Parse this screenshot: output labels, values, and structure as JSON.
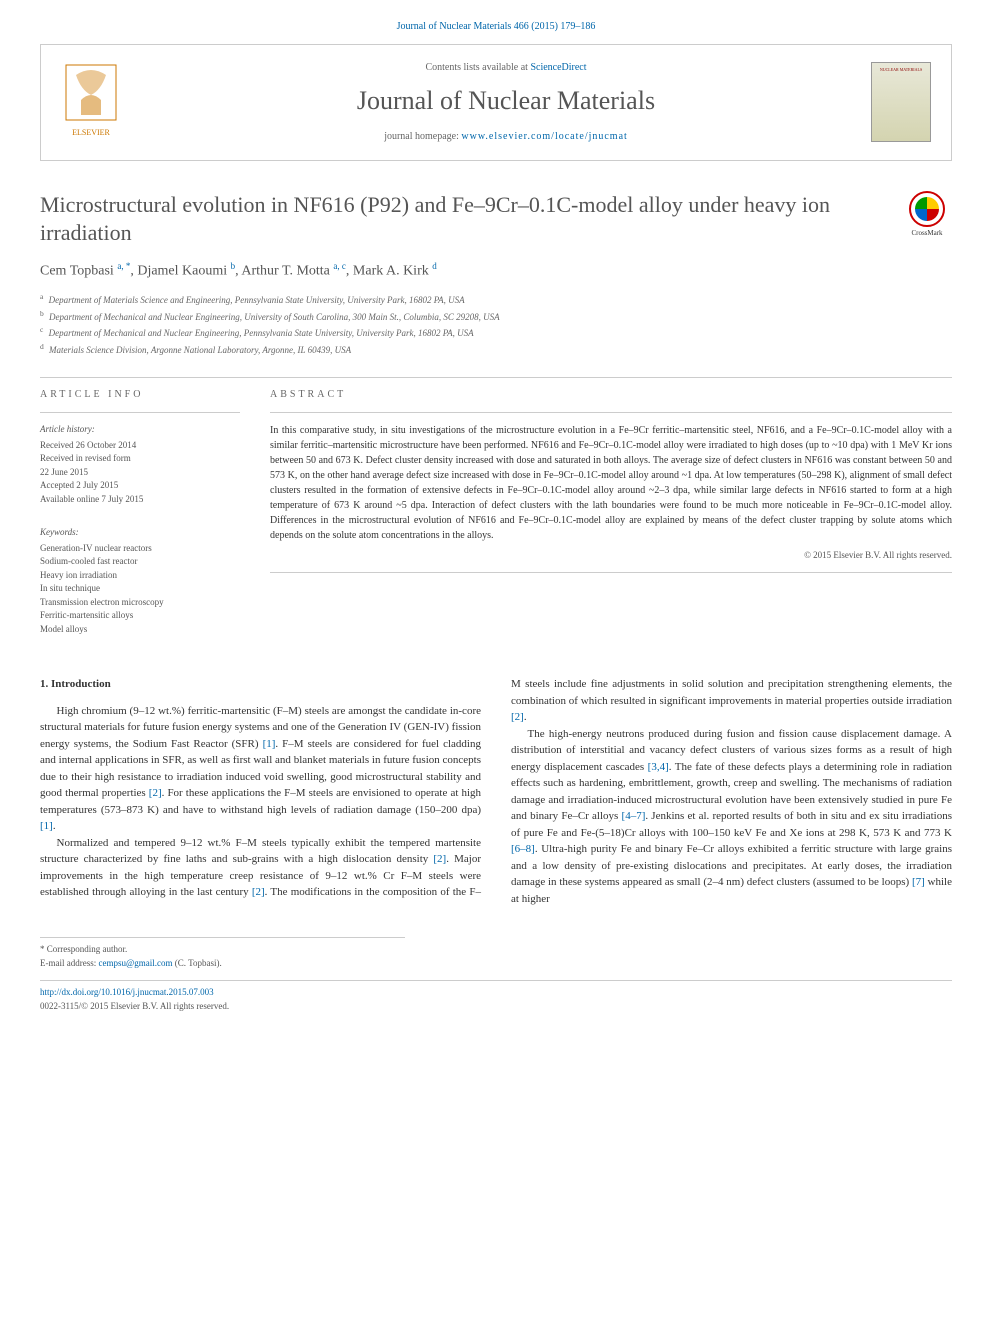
{
  "citation": "Journal of Nuclear Materials 466 (2015) 179–186",
  "banner": {
    "contents_prefix": "Contents lists available at ",
    "contents_link": "ScienceDirect",
    "journal_name": "Journal of Nuclear Materials",
    "homepage_prefix": "journal homepage: ",
    "homepage_url": "www.elsevier.com/locate/jnucmat",
    "cover_label": "NUCLEAR MATERIALS"
  },
  "title": "Microstructural evolution in NF616 (P92) and Fe–9Cr–0.1C-model alloy under heavy ion irradiation",
  "crossmark_label": "CrossMark",
  "authors_html": "Cem Topbasi <sup>a, *</sup>, Djamel Kaoumi <sup>b</sup>, Arthur T. Motta <sup>a, c</sup>, Mark A. Kirk <sup>d</sup>",
  "affiliations": [
    {
      "sup": "a",
      "text": "Department of Materials Science and Engineering, Pennsylvania State University, University Park, 16802 PA, USA"
    },
    {
      "sup": "b",
      "text": "Department of Mechanical and Nuclear Engineering, University of South Carolina, 300 Main St., Columbia, SC 29208, USA"
    },
    {
      "sup": "c",
      "text": "Department of Mechanical and Nuclear Engineering, Pennsylvania State University, University Park, 16802 PA, USA"
    },
    {
      "sup": "d",
      "text": "Materials Science Division, Argonne National Laboratory, Argonne, IL 60439, USA"
    }
  ],
  "info": {
    "label": "ARTICLE INFO",
    "history_label": "Article history:",
    "history": [
      "Received 26 October 2014",
      "Received in revised form",
      "22 June 2015",
      "Accepted 2 July 2015",
      "Available online 7 July 2015"
    ],
    "keywords_label": "Keywords:",
    "keywords": [
      "Generation-IV nuclear reactors",
      "Sodium-cooled fast reactor",
      "Heavy ion irradiation",
      "In situ technique",
      "Transmission electron microscopy",
      "Ferritic-martensitic alloys",
      "Model alloys"
    ]
  },
  "abstract": {
    "label": "ABSTRACT",
    "text": "In this comparative study, in situ investigations of the microstructure evolution in a Fe–9Cr ferritic–martensitic steel, NF616, and a Fe–9Cr–0.1C-model alloy with a similar ferritic–martensitic microstructure have been performed. NF616 and Fe–9Cr–0.1C-model alloy were irradiated to high doses (up to ~10 dpa) with 1 MeV Kr ions between 50 and 673 K. Defect cluster density increased with dose and saturated in both alloys. The average size of defect clusters in NF616 was constant between 50 and 573 K, on the other hand average defect size increased with dose in Fe–9Cr–0.1C-model alloy around ~1 dpa. At low temperatures (50–298 K), alignment of small defect clusters resulted in the formation of extensive defects in Fe–9Cr–0.1C-model alloy around ~2–3 dpa, while similar large defects in NF616 started to form at a high temperature of 673 K around ~5 dpa. Interaction of defect clusters with the lath boundaries were found to be much more noticeable in Fe–9Cr–0.1C-model alloy. Differences in the microstructural evolution of NF616 and Fe–9Cr–0.1C-model alloy are explained by means of the defect cluster trapping by solute atoms which depends on the solute atom concentrations in the alloys.",
    "copyright": "© 2015 Elsevier B.V. All rights reserved."
  },
  "body": {
    "heading": "1. Introduction",
    "p1": "High chromium (9–12 wt.%) ferritic-martensitic (F–M) steels are amongst the candidate in-core structural materials for future fusion energy systems and one of the Generation IV (GEN-IV) fission energy systems, the Sodium Fast Reactor (SFR) [1]. F–M steels are considered for fuel cladding and internal applications in SFR, as well as first wall and blanket materials in future fusion concepts due to their high resistance to irradiation induced void swelling, good microstructural stability and good thermal properties [2]. For these applications the F–M steels are envisioned to operate at high temperatures (573–873 K) and have to withstand high levels of radiation damage (150–200 dpa) [1].",
    "p2": "Normalized and tempered 9–12 wt.% F–M steels typically exhibit the tempered martensite structure characterized by fine laths and sub-grains with a high dislocation density [2]. Major improvements in the high temperature creep resistance of 9–12 wt.% Cr F–M steels were established through alloying in the last century [2]. The modifications in the composition of the F–M steels include fine adjustments in solid solution and precipitation strengthening elements, the combination of which resulted in significant improvements in material properties outside irradiation [2].",
    "p3": "The high-energy neutrons produced during fusion and fission cause displacement damage. A distribution of interstitial and vacancy defect clusters of various sizes forms as a result of high energy displacement cascades [3,4]. The fate of these defects plays a determining role in radiation effects such as hardening, embrittlement, growth, creep and swelling. The mechanisms of radiation damage and irradiation-induced microstructural evolution have been extensively studied in pure Fe and binary Fe–Cr alloys [4–7]. Jenkins et al. reported results of both in situ and ex situ irradiations of pure Fe and Fe-(5–18)Cr alloys with 100–150 keV Fe and Xe ions at 298 K, 573 K and 773 K [6–8]. Ultra-high purity Fe and binary Fe–Cr alloys exhibited a ferritic structure with large grains and a low density of pre-existing dislocations and precipitates. At early doses, the irradiation damage in these systems appeared as small (2–4 nm) defect clusters (assumed to be loops) [7] while at higher"
  },
  "footer": {
    "corr_label": "* Corresponding author.",
    "email_label": "E-mail address: ",
    "email": "cempsu@gmail.com",
    "email_name": " (C. Topbasi).",
    "doi": "http://dx.doi.org/10.1016/j.jnucmat.2015.07.003",
    "issn_line": "0022-3115/© 2015 Elsevier B.V. All rights reserved."
  },
  "colors": {
    "link": "#0066aa",
    "text": "#333333",
    "muted": "#666666",
    "border": "#cccccc"
  }
}
